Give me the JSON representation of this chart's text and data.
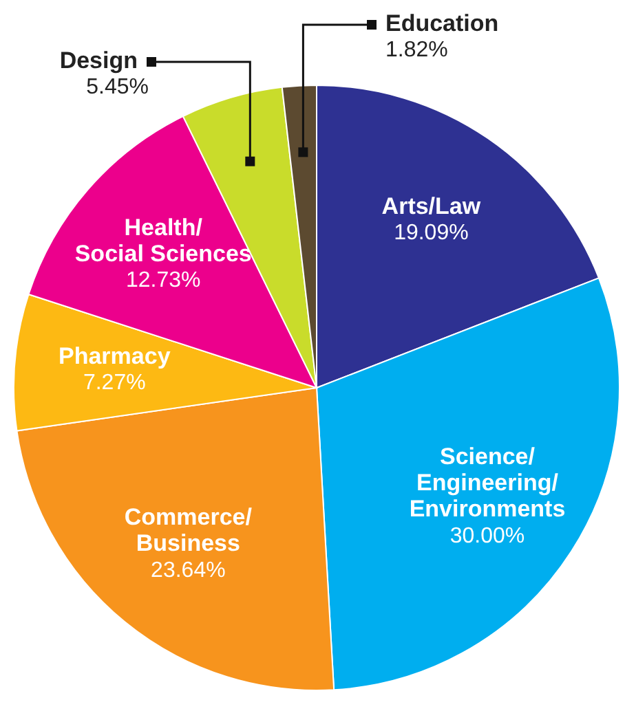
{
  "chart_data": {
    "type": "pie",
    "categories": [
      "Arts/Law",
      "Science/Engineering/Environments",
      "Commerce/Business",
      "Pharmacy",
      "Health/Social Sciences",
      "Design",
      "Education"
    ],
    "values": [
      19.09,
      30.0,
      23.64,
      7.27,
      12.73,
      5.45,
      1.82
    ],
    "value_labels": [
      "19.09%",
      "30.00%",
      "23.64%",
      "7.27%",
      "12.73%",
      "5.45%",
      "1.82%"
    ],
    "colors": [
      "#2e3192",
      "#00aeef",
      "#f7941d",
      "#fdb913",
      "#ec008c",
      "#c9dc2b",
      "#5c4a30"
    ],
    "legend": false
  }
}
